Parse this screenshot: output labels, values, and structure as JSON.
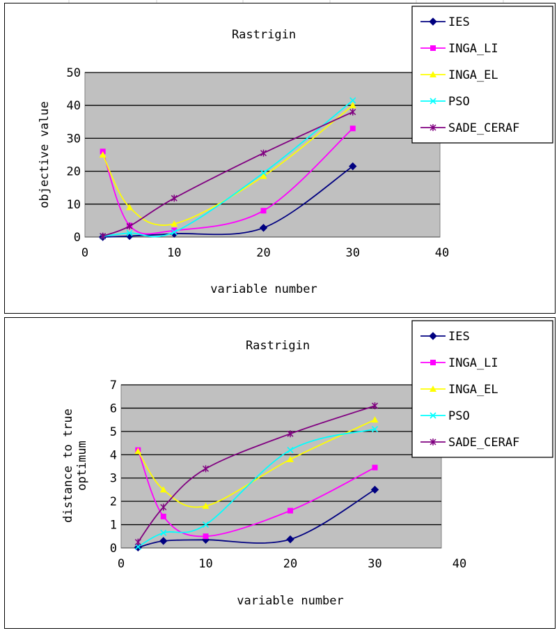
{
  "colors": {
    "plot_bg": "#c0c0c0",
    "grid": "#000000",
    "IES": "#000080",
    "INGA_LI": "#ff00ff",
    "INGA_EL": "#ffff00",
    "PSO": "#00ffff",
    "SADE_CERAF": "#800080"
  },
  "chart_data": [
    {
      "type": "line",
      "smooth": true,
      "title": "Rastrigin",
      "xlabel": "variable number",
      "ylabel": "objective value",
      "xlim": [
        0,
        40
      ],
      "ylim": [
        0,
        50
      ],
      "xticks": [
        "0",
        "10",
        "20",
        "30",
        "40"
      ],
      "yticks": [
        "0",
        "10",
        "20",
        "30",
        "40",
        "50"
      ],
      "grid": true,
      "legend_position": "top-right",
      "x": [
        2,
        5,
        10,
        20,
        30
      ],
      "series": [
        {
          "name": "IES",
          "marker": "diamond",
          "values": [
            0,
            0.3,
            1.0,
            2.8,
            21.5
          ]
        },
        {
          "name": "INGA_LI",
          "marker": "square",
          "values": [
            26.0,
            3.5,
            2.0,
            8.0,
            33.0
          ]
        },
        {
          "name": "INGA_EL",
          "marker": "triangle",
          "values": [
            25.0,
            9.0,
            4.0,
            18.5,
            40.0
          ]
        },
        {
          "name": "PSO",
          "marker": "x",
          "values": [
            0.2,
            1.2,
            1.5,
            19.5,
            41.5
          ]
        },
        {
          "name": "SADE_CERAF",
          "marker": "star",
          "values": [
            0.3,
            3.3,
            11.8,
            25.5,
            38.0
          ]
        }
      ]
    },
    {
      "type": "line",
      "smooth": true,
      "title": "Rastrigin",
      "xlabel": "variable number",
      "ylabel": "distance to true optimum",
      "ylabel_lines": [
        "distance to true",
        "optimum"
      ],
      "xlim": [
        0,
        40
      ],
      "ylim": [
        0,
        7
      ],
      "xticks": [
        "0",
        "10",
        "20",
        "30",
        "40"
      ],
      "yticks": [
        "0",
        "1",
        "2",
        "3",
        "4",
        "5",
        "6",
        "7"
      ],
      "grid": true,
      "legend_position": "top-right",
      "x": [
        2,
        5,
        10,
        20,
        30
      ],
      "series": [
        {
          "name": "IES",
          "marker": "diamond",
          "values": [
            0.02,
            0.3,
            0.35,
            0.37,
            2.5
          ]
        },
        {
          "name": "INGA_LI",
          "marker": "square",
          "values": [
            4.2,
            1.35,
            0.5,
            1.6,
            3.45
          ]
        },
        {
          "name": "INGA_EL",
          "marker": "triangle",
          "values": [
            4.15,
            2.5,
            1.8,
            3.8,
            5.5
          ]
        },
        {
          "name": "PSO",
          "marker": "x",
          "values": [
            0.05,
            0.65,
            1.0,
            4.2,
            5.1
          ]
        },
        {
          "name": "SADE_CERAF",
          "marker": "star",
          "values": [
            0.25,
            1.75,
            3.4,
            4.9,
            6.1
          ]
        }
      ]
    }
  ]
}
